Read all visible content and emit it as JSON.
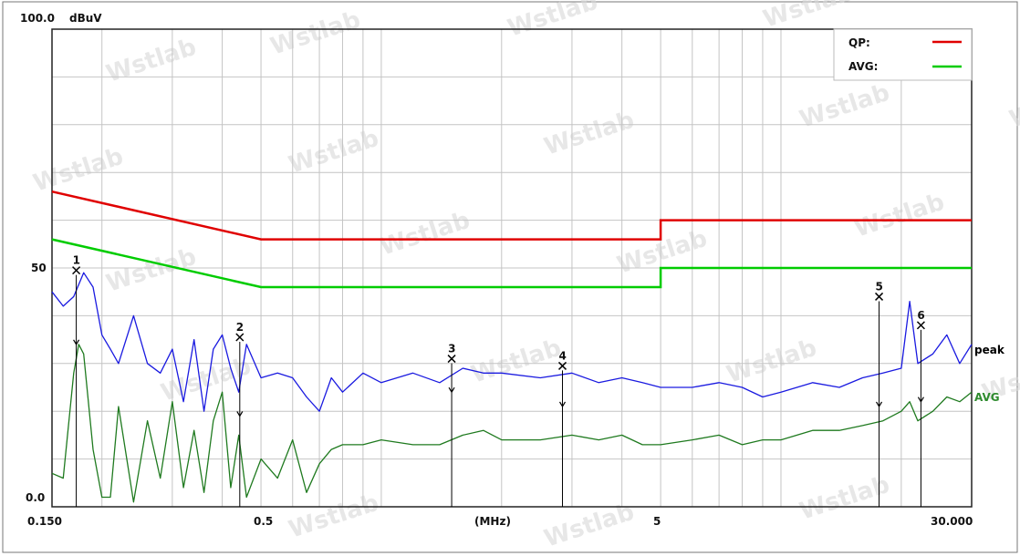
{
  "chart_data": {
    "type": "line",
    "title": "",
    "xlabel": "(MHz)",
    "ylabel": "dBuV",
    "xscale": "log",
    "xlim": [
      0.15,
      30
    ],
    "ylim": [
      0,
      100
    ],
    "grid": true,
    "y_ticks": [
      {
        "value": 100,
        "label": "100.0"
      },
      {
        "value": 50,
        "label": "50"
      },
      {
        "value": 0,
        "label": "0.0"
      }
    ],
    "x_ticks": [
      {
        "value": 0.15,
        "label": "0.150"
      },
      {
        "value": 0.5,
        "label": "0.5"
      },
      {
        "value": 5,
        "label": "5"
      },
      {
        "value": 30,
        "label": "30.000"
      }
    ],
    "legend": {
      "position": "top-right",
      "entries": [
        {
          "label": "QP:",
          "color": "#e00000"
        },
        {
          "label": "AVG:",
          "color": "#00cc00"
        }
      ]
    },
    "limit_lines": [
      {
        "name": "QP",
        "color": "#e00000",
        "points": [
          [
            0.15,
            66
          ],
          [
            0.5,
            56
          ],
          [
            5,
            56
          ],
          [
            5,
            60
          ],
          [
            30,
            60
          ]
        ]
      },
      {
        "name": "AVG",
        "color": "#00cc00",
        "points": [
          [
            0.15,
            56
          ],
          [
            0.5,
            46
          ],
          [
            5,
            46
          ],
          [
            5,
            50
          ],
          [
            30,
            50
          ]
        ]
      }
    ],
    "series": [
      {
        "name": "peak",
        "color": "#1a1ae0",
        "x": [
          0.15,
          0.16,
          0.17,
          0.18,
          0.19,
          0.2,
          0.21,
          0.22,
          0.24,
          0.26,
          0.28,
          0.3,
          0.32,
          0.34,
          0.36,
          0.38,
          0.4,
          0.42,
          0.44,
          0.46,
          0.5,
          0.55,
          0.6,
          0.65,
          0.7,
          0.75,
          0.8,
          0.9,
          1.0,
          1.2,
          1.4,
          1.6,
          1.8,
          2.0,
          2.5,
          3.0,
          3.5,
          4.0,
          4.5,
          5.0,
          6,
          7,
          8,
          9,
          10,
          12,
          14,
          16,
          18,
          20,
          21,
          22,
          24,
          26,
          28,
          30
        ],
        "y": [
          45,
          42,
          44,
          49,
          46,
          36,
          33,
          30,
          40,
          30,
          28,
          33,
          22,
          35,
          20,
          33,
          36,
          29,
          24,
          34,
          27,
          28,
          27,
          23,
          20,
          27,
          24,
          28,
          26,
          28,
          26,
          29,
          28,
          28,
          27,
          28,
          26,
          27,
          26,
          25,
          25,
          26,
          25,
          23,
          24,
          26,
          25,
          27,
          28,
          29,
          43,
          30,
          32,
          36,
          30,
          34
        ]
      },
      {
        "name": "AVG",
        "color": "#1f7a1f",
        "x": [
          0.15,
          0.16,
          0.17,
          0.175,
          0.18,
          0.19,
          0.2,
          0.21,
          0.22,
          0.24,
          0.26,
          0.28,
          0.3,
          0.32,
          0.34,
          0.36,
          0.38,
          0.4,
          0.42,
          0.44,
          0.46,
          0.5,
          0.55,
          0.6,
          0.65,
          0.7,
          0.75,
          0.8,
          0.9,
          1.0,
          1.2,
          1.4,
          1.6,
          1.8,
          2.0,
          2.5,
          3.0,
          3.5,
          4.0,
          4.5,
          5.0,
          6,
          7,
          8,
          9,
          10,
          12,
          14,
          16,
          18,
          20,
          21,
          22,
          24,
          26,
          28,
          30
        ],
        "y": [
          7,
          6,
          28,
          34,
          32,
          12,
          2,
          2,
          21,
          1,
          18,
          6,
          22,
          4,
          16,
          3,
          18,
          24,
          4,
          15,
          2,
          10,
          6,
          14,
          3,
          9,
          12,
          13,
          13,
          14,
          13,
          13,
          15,
          16,
          14,
          14,
          15,
          14,
          15,
          13,
          13,
          14,
          15,
          13,
          14,
          14,
          16,
          16,
          17,
          18,
          20,
          22,
          18,
          20,
          23,
          22,
          24
        ]
      }
    ],
    "series_end_labels": [
      {
        "label": "peak",
        "color": "#000000"
      },
      {
        "label": "AVG",
        "color": "#2e8b2e"
      }
    ],
    "markers": [
      {
        "label": "1",
        "freq": 0.1725,
        "level": 49.5,
        "avg": 34
      },
      {
        "label": "2",
        "freq": 0.4425,
        "level": 35.5,
        "avg": 19
      },
      {
        "label": "3",
        "freq": 1.5,
        "level": 31,
        "avg": 24
      },
      {
        "label": "4",
        "freq": 2.84,
        "level": 29.5,
        "avg": 21
      },
      {
        "label": "5",
        "freq": 17.6,
        "level": 44,
        "avg": 21
      },
      {
        "label": "6",
        "freq": 22.4,
        "level": 38,
        "avg": 22
      }
    ],
    "watermark": "Wstlab"
  }
}
